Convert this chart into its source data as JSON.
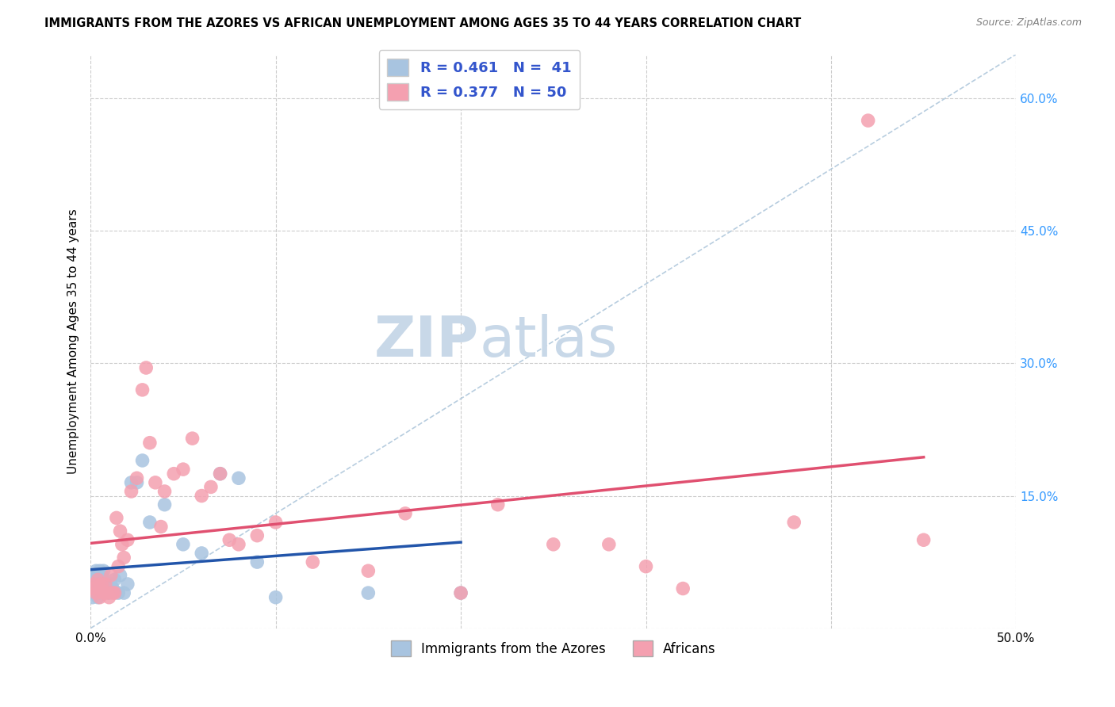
{
  "title": "IMMIGRANTS FROM THE AZORES VS AFRICAN UNEMPLOYMENT AMONG AGES 35 TO 44 YEARS CORRELATION CHART",
  "source": "Source: ZipAtlas.com",
  "ylabel": "Unemployment Among Ages 35 to 44 years",
  "xlim": [
    0.0,
    0.5
  ],
  "ylim": [
    0.0,
    0.65
  ],
  "yticks": [
    0.0,
    0.15,
    0.3,
    0.45,
    0.6
  ],
  "xticks": [
    0.0,
    0.1,
    0.2,
    0.3,
    0.4,
    0.5
  ],
  "grid_color": "#cccccc",
  "background_color": "#ffffff",
  "azores_color": "#a8c4e0",
  "azores_line_color": "#2255aa",
  "african_color": "#f4a0b0",
  "african_line_color": "#e05070",
  "diagonal_color": "#b0c8dc",
  "legend_R_azores": "R = 0.461",
  "legend_N_azores": "N =  41",
  "legend_R_african": "R = 0.377",
  "legend_N_african": "N = 50",
  "legend_label_azores": "Immigrants from the Azores",
  "legend_label_african": "Africans",
  "azores_x": [
    0.001,
    0.001,
    0.001,
    0.002,
    0.002,
    0.002,
    0.003,
    0.003,
    0.003,
    0.004,
    0.004,
    0.005,
    0.005,
    0.005,
    0.006,
    0.006,
    0.007,
    0.007,
    0.008,
    0.009,
    0.01,
    0.011,
    0.012,
    0.013,
    0.015,
    0.016,
    0.018,
    0.02,
    0.022,
    0.025,
    0.028,
    0.032,
    0.04,
    0.05,
    0.06,
    0.07,
    0.08,
    0.09,
    0.1,
    0.15,
    0.2
  ],
  "azores_y": [
    0.055,
    0.045,
    0.035,
    0.06,
    0.05,
    0.04,
    0.065,
    0.055,
    0.045,
    0.06,
    0.035,
    0.065,
    0.055,
    0.04,
    0.06,
    0.045,
    0.065,
    0.055,
    0.045,
    0.05,
    0.04,
    0.05,
    0.045,
    0.055,
    0.04,
    0.06,
    0.04,
    0.05,
    0.165,
    0.165,
    0.19,
    0.12,
    0.14,
    0.095,
    0.085,
    0.175,
    0.17,
    0.075,
    0.035,
    0.04,
    0.04
  ],
  "african_x": [
    0.001,
    0.002,
    0.003,
    0.004,
    0.005,
    0.005,
    0.006,
    0.007,
    0.008,
    0.009,
    0.01,
    0.011,
    0.012,
    0.013,
    0.014,
    0.015,
    0.016,
    0.017,
    0.018,
    0.02,
    0.022,
    0.025,
    0.028,
    0.03,
    0.032,
    0.035,
    0.038,
    0.04,
    0.045,
    0.05,
    0.055,
    0.06,
    0.065,
    0.07,
    0.075,
    0.08,
    0.09,
    0.1,
    0.12,
    0.15,
    0.17,
    0.2,
    0.22,
    0.25,
    0.28,
    0.3,
    0.32,
    0.38,
    0.42,
    0.45
  ],
  "african_y": [
    0.045,
    0.05,
    0.04,
    0.055,
    0.045,
    0.035,
    0.05,
    0.04,
    0.05,
    0.04,
    0.035,
    0.06,
    0.04,
    0.04,
    0.125,
    0.07,
    0.11,
    0.095,
    0.08,
    0.1,
    0.155,
    0.17,
    0.27,
    0.295,
    0.21,
    0.165,
    0.115,
    0.155,
    0.175,
    0.18,
    0.215,
    0.15,
    0.16,
    0.175,
    0.1,
    0.095,
    0.105,
    0.12,
    0.075,
    0.065,
    0.13,
    0.04,
    0.14,
    0.095,
    0.095,
    0.07,
    0.045,
    0.12,
    0.575,
    0.1
  ],
  "watermark_zip_color": "#c8d8e8",
  "watermark_atlas_color": "#c8d8e8",
  "watermark_fontsize": 52
}
